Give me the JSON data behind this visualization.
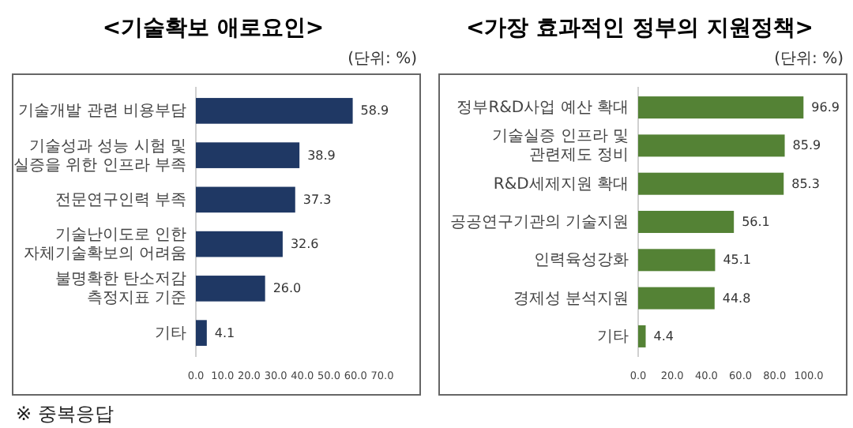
{
  "chart_data": [
    {
      "type": "bar",
      "orientation": "horizontal",
      "title": "<기술확보 애로요인>",
      "subtitle": "(단위: %)",
      "categories": [
        "기술개발 관련 비용부담",
        "기술성과 성능 시험 및 실증을 위한 인프라 부족",
        "전문연구인력 부족",
        "기술난이도로 인한 자체기술확보의 어려움",
        "불명확한 탄소저감 측정지표 기준",
        "기타"
      ],
      "values": [
        58.9,
        38.9,
        37.3,
        32.6,
        26.0,
        4.1
      ],
      "value_labels": [
        "58.9",
        "38.9",
        "37.3",
        "32.6",
        "26.0",
        "4.1"
      ],
      "color": "#1f3864",
      "xlim": [
        0,
        70
      ],
      "xticks": [
        {
          "value": 0,
          "label": "0.0"
        },
        {
          "value": 10,
          "label": "10.0"
        },
        {
          "value": 20,
          "label": "20.0"
        },
        {
          "value": 30,
          "label": "30.0"
        },
        {
          "value": 40,
          "label": "40.0"
        },
        {
          "value": 50,
          "label": "50.0"
        },
        {
          "value": 60,
          "label": "60.0"
        },
        {
          "value": 70,
          "label": "70.0"
        }
      ],
      "annotations": [
        "※ 중복응답"
      ]
    },
    {
      "type": "bar",
      "orientation": "horizontal",
      "title": "<가장 효과적인 정부의 지원정책>",
      "subtitle": "(단위: %)",
      "categories": [
        "정부R&D사업 예산 확대",
        "기술실증 인프라 및 관련제도 정비",
        "R&D세제지원 확대",
        "공공연구기관의 기술지원",
        "인력육성강화",
        "경제성 분석지원",
        "기타"
      ],
      "values": [
        96.9,
        85.9,
        85.3,
        56.1,
        45.1,
        44.8,
        4.4
      ],
      "value_labels": [
        "96.9",
        "85.9",
        "85.3",
        "56.1",
        "45.1",
        "44.8",
        "4.4"
      ],
      "color": "#548235",
      "xlim": [
        0,
        100
      ],
      "xticks": [
        {
          "value": 0,
          "label": "0.0"
        },
        {
          "value": 20,
          "label": "20.0"
        },
        {
          "value": 40,
          "label": "40.0"
        },
        {
          "value": 60,
          "label": "60.0"
        },
        {
          "value": 80,
          "label": "80.0"
        },
        {
          "value": 100,
          "label": "100.0"
        }
      ]
    }
  ]
}
